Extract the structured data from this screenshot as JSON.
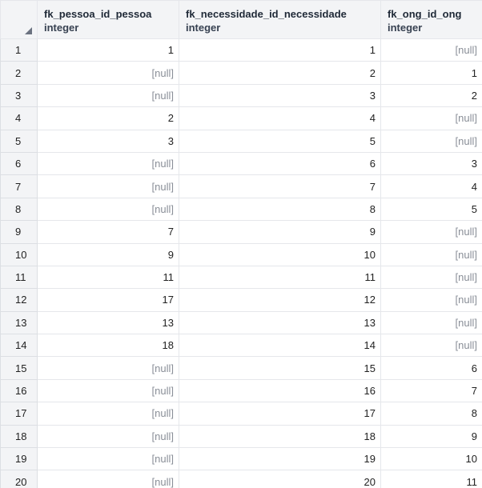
{
  "columns": [
    {
      "name": "fk_pessoa_id_pessoa",
      "type": "integer"
    },
    {
      "name": "fk_necessidade_id_necessidade",
      "type": "integer"
    },
    {
      "name": "fk_ong_id_ong",
      "type": "integer"
    }
  ],
  "rows": [
    {
      "num": "1",
      "cells": [
        "1",
        "1",
        "[null]"
      ]
    },
    {
      "num": "2",
      "cells": [
        "[null]",
        "2",
        "1"
      ]
    },
    {
      "num": "3",
      "cells": [
        "[null]",
        "3",
        "2"
      ]
    },
    {
      "num": "4",
      "cells": [
        "2",
        "4",
        "[null]"
      ]
    },
    {
      "num": "5",
      "cells": [
        "3",
        "5",
        "[null]"
      ]
    },
    {
      "num": "6",
      "cells": [
        "[null]",
        "6",
        "3"
      ]
    },
    {
      "num": "7",
      "cells": [
        "[null]",
        "7",
        "4"
      ]
    },
    {
      "num": "8",
      "cells": [
        "[null]",
        "8",
        "5"
      ]
    },
    {
      "num": "9",
      "cells": [
        "7",
        "9",
        "[null]"
      ]
    },
    {
      "num": "10",
      "cells": [
        "9",
        "10",
        "[null]"
      ]
    },
    {
      "num": "11",
      "cells": [
        "11",
        "11",
        "[null]"
      ]
    },
    {
      "num": "12",
      "cells": [
        "17",
        "12",
        "[null]"
      ]
    },
    {
      "num": "13",
      "cells": [
        "13",
        "13",
        "[null]"
      ]
    },
    {
      "num": "14",
      "cells": [
        "18",
        "14",
        "[null]"
      ]
    },
    {
      "num": "15",
      "cells": [
        "[null]",
        "15",
        "6"
      ]
    },
    {
      "num": "16",
      "cells": [
        "[null]",
        "16",
        "7"
      ]
    },
    {
      "num": "17",
      "cells": [
        "[null]",
        "17",
        "8"
      ]
    },
    {
      "num": "18",
      "cells": [
        "[null]",
        "18",
        "9"
      ]
    },
    {
      "num": "19",
      "cells": [
        "[null]",
        "19",
        "10"
      ]
    },
    {
      "num": "20",
      "cells": [
        "[null]",
        "20",
        "11"
      ]
    }
  ],
  "colors": {
    "accent": "#2f6ea8",
    "header_bg": "#f3f4f6",
    "null_text": "#8a8f98"
  },
  "icons": {
    "corner": "sort-triangle-icon"
  }
}
